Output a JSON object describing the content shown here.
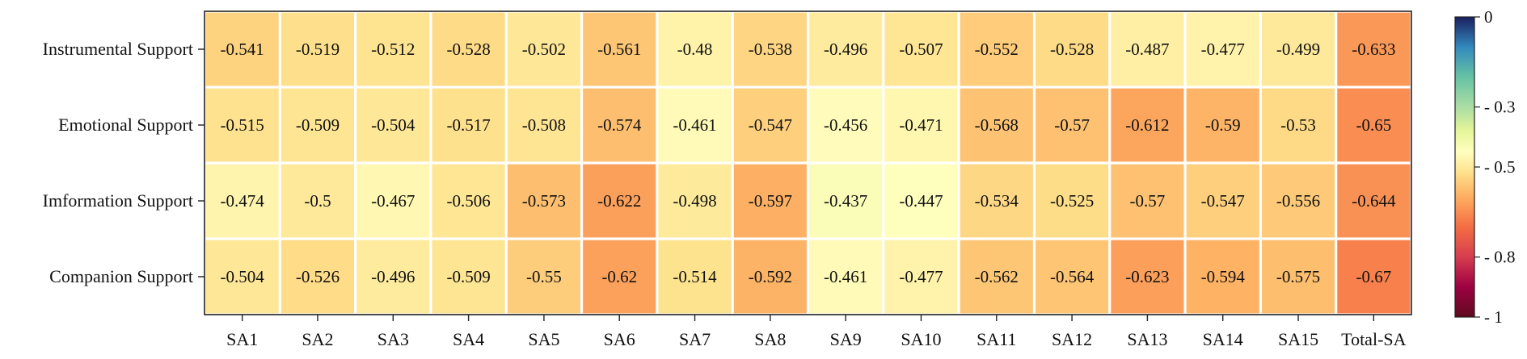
{
  "chart_data": {
    "type": "heatmap",
    "rows": [
      "Instrumental Support",
      "Emotional Support",
      "Imformation Support",
      "Companion Support"
    ],
    "columns": [
      "SA1",
      "SA2",
      "SA3",
      "SA4",
      "SA5",
      "SA6",
      "SA7",
      "SA8",
      "SA9",
      "SA10",
      "SA11",
      "SA12",
      "SA13",
      "SA14",
      "SA15",
      "Total-SA"
    ],
    "values": [
      [
        -0.541,
        -0.519,
        -0.512,
        -0.528,
        -0.502,
        -0.561,
        -0.48,
        -0.538,
        -0.496,
        -0.507,
        -0.552,
        -0.528,
        -0.487,
        -0.477,
        -0.499,
        -0.633
      ],
      [
        -0.515,
        -0.509,
        -0.504,
        -0.517,
        -0.508,
        -0.574,
        -0.461,
        -0.547,
        -0.456,
        -0.471,
        -0.568,
        -0.57,
        -0.612,
        -0.59,
        -0.53,
        -0.65
      ],
      [
        -0.474,
        -0.5,
        -0.467,
        -0.506,
        -0.573,
        -0.622,
        -0.498,
        -0.597,
        -0.437,
        -0.447,
        -0.534,
        -0.525,
        -0.57,
        -0.547,
        -0.556,
        -0.644
      ],
      [
        -0.504,
        -0.526,
        -0.496,
        -0.509,
        -0.55,
        -0.62,
        -0.514,
        -0.592,
        -0.461,
        -0.477,
        -0.562,
        -0.564,
        -0.623,
        -0.594,
        -0.575,
        -0.67
      ]
    ],
    "colorbar": {
      "range": [
        -1,
        0
      ],
      "ticks": [
        0,
        -0.3,
        -0.5,
        -0.8,
        -1
      ],
      "tick_labels": [
        "0",
        "- 0.3",
        "- 0.5",
        "- 0.8",
        "- 1"
      ]
    },
    "colormap": "Spectral",
    "grid": false
  }
}
